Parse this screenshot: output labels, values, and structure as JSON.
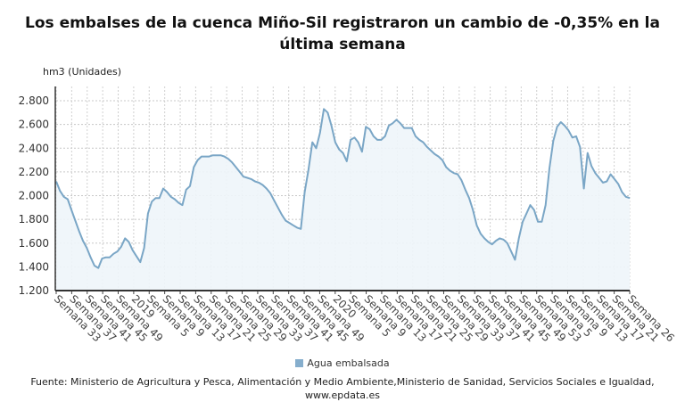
{
  "title": "Los embalses de la cuenca Miño-Sil registraron un cambio de -0,35% en la última semana",
  "unit_label": "hm3 (Unidades)",
  "legend": {
    "label": "Agua embalsada",
    "color": "#86aecd"
  },
  "source": "Fuente: Ministerio de Agricultura y Pesca, Alimentación y Medio Ambiente,Ministerio de Sanidad, Servicios Sociales e Igualdad, www.epdata.es",
  "chart_data": {
    "type": "area",
    "title": "Los embalses de la cuenca Miño-Sil registraron un cambio de -0,35% en la última semana",
    "ylabel": "hm3 (Unidades)",
    "ylim": [
      1200,
      2800
    ],
    "yticks": [
      "1.200",
      "1.400",
      "1.600",
      "1.800",
      "2.000",
      "2.200",
      "2.400",
      "2.600",
      "2.800"
    ],
    "ytick_values": [
      1200,
      1400,
      1600,
      1800,
      2000,
      2200,
      2400,
      2600,
      2800
    ],
    "grid": true,
    "legend_position": "bottom",
    "line_color": "#7aa6c6",
    "fill_color": "#eef5fa",
    "x_tick_labels": [
      "Semana 33",
      "Semana 37",
      "Semana 41",
      "Semana 45",
      "Semana 49",
      "2019",
      "Semana 5",
      "Semana 9",
      "Semana 13",
      "Semana 17",
      "Semana 21",
      "Semana 25",
      "Semana 29",
      "Semana 33",
      "Semana 37",
      "Semana 41",
      "Semana 45",
      "Semana 49",
      "2020",
      "Semana 5",
      "Semana 9",
      "Semana 13",
      "Semana 17",
      "Semana 21",
      "Semana 25",
      "Semana 29",
      "Semana 33",
      "Semana 37",
      "Semana 41",
      "Semana 45",
      "Semana 49",
      "Semana 53",
      "Semana 5",
      "Semana 9",
      "Semana 13",
      "Semana 17",
      "Semana 21",
      "Semana 26"
    ],
    "series": [
      {
        "name": "Agua embalsada",
        "values": [
          2120,
          2040,
          1990,
          1970,
          1880,
          1790,
          1700,
          1620,
          1560,
          1480,
          1410,
          1390,
          1470,
          1480,
          1480,
          1510,
          1530,
          1570,
          1640,
          1610,
          1540,
          1490,
          1440,
          1560,
          1850,
          1950,
          1980,
          1980,
          2060,
          2030,
          1990,
          1970,
          1940,
          1920,
          2050,
          2080,
          2240,
          2300,
          2330,
          2330,
          2330,
          2340,
          2340,
          2340,
          2330,
          2310,
          2280,
          2240,
          2200,
          2160,
          2150,
          2140,
          2120,
          2110,
          2090,
          2060,
          2020,
          1960,
          1900,
          1840,
          1790,
          1770,
          1750,
          1730,
          1720,
          2030,
          2220,
          2450,
          2400,
          2530,
          2730,
          2700,
          2590,
          2450,
          2390,
          2360,
          2290,
          2470,
          2490,
          2450,
          2370,
          2580,
          2560,
          2500,
          2470,
          2470,
          2500,
          2590,
          2610,
          2640,
          2610,
          2570,
          2570,
          2570,
          2500,
          2470,
          2450,
          2410,
          2380,
          2350,
          2330,
          2300,
          2240,
          2210,
          2190,
          2180,
          2130,
          2050,
          1980,
          1880,
          1750,
          1680,
          1640,
          1610,
          1590,
          1620,
          1640,
          1630,
          1600,
          1530,
          1460,
          1640,
          1780,
          1850,
          1920,
          1880,
          1780,
          1780,
          1920,
          2230,
          2460,
          2580,
          2620,
          2590,
          2550,
          2490,
          2500,
          2410,
          2060,
          2360,
          2250,
          2190,
          2150,
          2110,
          2120,
          2180,
          2140,
          2100,
          2030,
          1990,
          1980
        ]
      }
    ]
  }
}
